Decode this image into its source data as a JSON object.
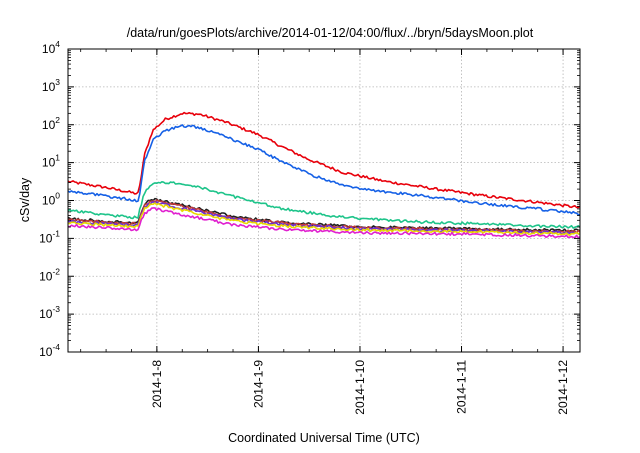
{
  "chart_data": {
    "type": "line",
    "title": "/data/run/goesPlots/archive/2014-01-12/04:00/flux/../bryn/5daysMoon.plot",
    "xlabel": "Coordinated Universal Time (UTC)",
    "ylabel": "cSv/day",
    "yscale": "log",
    "ylim": [
      0.0001,
      10000
    ],
    "xlim": [
      "2014-01-07T03:00",
      "2014-01-12T04:00"
    ],
    "x_ticks": [
      "2014-1-8",
      "2014-1-9",
      "2014-1-10",
      "2014-1-11",
      "2014-1-12"
    ],
    "y_ticks": [
      {
        "base": "10",
        "exp": "-4",
        "value": 0.0001
      },
      {
        "base": "10",
        "exp": "-3",
        "value": 0.001
      },
      {
        "base": "10",
        "exp": "-2",
        "value": 0.01
      },
      {
        "base": "10",
        "exp": "-1",
        "value": 0.1
      },
      {
        "base": "10",
        "exp": "0",
        "value": 1
      },
      {
        "base": "10",
        "exp": "1",
        "value": 10
      },
      {
        "base": "10",
        "exp": "2",
        "value": 100
      },
      {
        "base": "10",
        "exp": "3",
        "value": 1000
      },
      {
        "base": "10",
        "exp": "4",
        "value": 10000
      }
    ],
    "grid": true,
    "legend": "none",
    "series": [
      {
        "color": "#e8000b",
        "x": [
          "2014-01-07T03:00",
          "2014-01-07T12:00",
          "2014-01-07T19:30",
          "2014-01-07T20:00",
          "2014-01-07T21:00",
          "2014-01-07T23:00",
          "2014-01-08T02:00",
          "2014-01-08T06:00",
          "2014-01-08T10:00",
          "2014-01-08T16:00",
          "2014-01-09T00:00",
          "2014-01-09T06:00",
          "2014-01-09T12:00",
          "2014-01-09T20:00",
          "2014-01-10T06:00",
          "2014-01-10T18:00",
          "2014-01-11T06:00",
          "2014-01-11T18:00",
          "2014-01-12T04:00"
        ],
        "y": [
          3.2,
          2.2,
          1.5,
          2.5,
          15,
          70,
          140,
          200,
          190,
          120,
          55,
          25,
          12,
          5.5,
          3.2,
          2.0,
          1.3,
          0.9,
          0.65
        ]
      },
      {
        "color": "#1560e6",
        "x": [
          "2014-01-07T03:00",
          "2014-01-07T12:00",
          "2014-01-07T19:30",
          "2014-01-07T20:00",
          "2014-01-07T21:00",
          "2014-01-07T23:00",
          "2014-01-08T02:00",
          "2014-01-08T06:00",
          "2014-01-08T10:00",
          "2014-01-08T16:00",
          "2014-01-09T00:00",
          "2014-01-09T06:00",
          "2014-01-09T12:00",
          "2014-01-09T20:00",
          "2014-01-10T06:00",
          "2014-01-10T18:00",
          "2014-01-11T06:00",
          "2014-01-11T18:00",
          "2014-01-12T04:00"
        ],
        "y": [
          1.8,
          1.3,
          1.0,
          1.6,
          10,
          40,
          70,
          95,
          85,
          50,
          22,
          10,
          5.0,
          2.5,
          1.7,
          1.2,
          0.8,
          0.6,
          0.45
        ]
      },
      {
        "color": "#1ec48a",
        "x": [
          "2014-01-07T03:00",
          "2014-01-07T12:00",
          "2014-01-07T19:30",
          "2014-01-07T20:00",
          "2014-01-07T21:00",
          "2014-01-07T23:00",
          "2014-01-08T02:00",
          "2014-01-08T06:00",
          "2014-01-08T12:00",
          "2014-01-08T20:00",
          "2014-01-09T06:00",
          "2014-01-09T18:00",
          "2014-01-10T06:00",
          "2014-01-10T18:00",
          "2014-01-11T06:00",
          "2014-01-11T18:00",
          "2014-01-12T04:00"
        ],
        "y": [
          0.55,
          0.42,
          0.35,
          0.6,
          1.6,
          2.8,
          3.0,
          2.9,
          2.0,
          1.1,
          0.6,
          0.38,
          0.3,
          0.26,
          0.24,
          0.21,
          0.2
        ]
      },
      {
        "color": "#202020",
        "x": [
          "2014-01-07T03:00",
          "2014-01-07T19:30",
          "2014-01-07T21:00",
          "2014-01-07T23:00",
          "2014-01-08T06:00",
          "2014-01-08T18:00",
          "2014-01-09T06:00",
          "2014-01-10T00:00",
          "2014-01-11T00:00",
          "2014-01-12T04:00"
        ],
        "y": [
          0.33,
          0.25,
          0.8,
          1.1,
          0.75,
          0.38,
          0.26,
          0.2,
          0.18,
          0.16
        ]
      },
      {
        "color": "#c43a3a",
        "x": [
          "2014-01-07T03:00",
          "2014-01-07T19:30",
          "2014-01-07T21:00",
          "2014-01-07T23:00",
          "2014-01-08T06:00",
          "2014-01-08T18:00",
          "2014-01-09T06:00",
          "2014-01-10T00:00",
          "2014-01-11T00:00",
          "2014-01-12T04:00"
        ],
        "y": [
          0.31,
          0.24,
          0.75,
          1.0,
          0.7,
          0.35,
          0.25,
          0.19,
          0.17,
          0.15
        ]
      },
      {
        "color": "#6a2fd0",
        "x": [
          "2014-01-07T03:00",
          "2014-01-07T19:30",
          "2014-01-07T21:00",
          "2014-01-07T23:00",
          "2014-01-08T06:00",
          "2014-01-08T18:00",
          "2014-01-09T06:00",
          "2014-01-10T00:00",
          "2014-01-11T00:00",
          "2014-01-12T04:00"
        ],
        "y": [
          0.28,
          0.22,
          0.68,
          0.92,
          0.62,
          0.32,
          0.23,
          0.18,
          0.16,
          0.14
        ]
      },
      {
        "color": "#e8d800",
        "x": [
          "2014-01-07T03:00",
          "2014-01-07T19:30",
          "2014-01-07T21:00",
          "2014-01-07T23:00",
          "2014-01-08T06:00",
          "2014-01-08T18:00",
          "2014-01-09T06:00",
          "2014-01-10T00:00",
          "2014-01-11T00:00",
          "2014-01-12T04:00"
        ],
        "y": [
          0.26,
          0.2,
          0.62,
          0.85,
          0.55,
          0.29,
          0.21,
          0.165,
          0.15,
          0.13
        ]
      },
      {
        "color": "#e020d0",
        "x": [
          "2014-01-07T03:00",
          "2014-01-07T19:30",
          "2014-01-07T21:00",
          "2014-01-07T23:00",
          "2014-01-08T06:00",
          "2014-01-08T18:00",
          "2014-01-09T06:00",
          "2014-01-10T00:00",
          "2014-01-11T00:00",
          "2014-01-12T04:00"
        ],
        "y": [
          0.22,
          0.17,
          0.45,
          0.62,
          0.42,
          0.23,
          0.17,
          0.14,
          0.13,
          0.11
        ]
      }
    ]
  }
}
